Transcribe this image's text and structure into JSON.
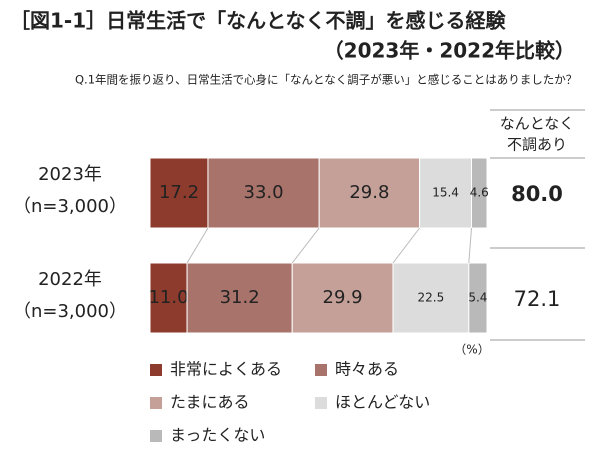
{
  "chart_data": {
    "type": "stacked_bar_h",
    "title": "［図1-1］日常生活で「なんとなく不調」を感じる経験",
    "title_line2": "（2023年・2022年比較）",
    "subtitle": "Q.1年間を振り返り、日常生活で心身に「なんとなく調子が悪い」と感じることはありましたか？",
    "categories": [
      "2023年",
      "2022年"
    ],
    "sample_sizes": [
      "（n=3,000）",
      "（n=3,000）"
    ],
    "xlim": [
      0,
      100
    ],
    "unit_label": "（%）",
    "series": [
      {
        "name": "非常によくある",
        "color": "#8c3b2d",
        "values": [
          17.2,
          11.0
        ],
        "value_labels": [
          "17.2",
          "11.0"
        ]
      },
      {
        "name": "時々ある",
        "color": "#a8736a",
        "values": [
          33.0,
          31.2
        ],
        "value_labels": [
          "33.0",
          "31.2"
        ]
      },
      {
        "name": "たまにある",
        "color": "#c4a099",
        "values": [
          29.8,
          29.9
        ],
        "value_labels": [
          "29.8",
          "29.9"
        ]
      },
      {
        "name": "ほとんどない",
        "color": "#dcdcdc",
        "values": [
          15.4,
          22.5
        ],
        "value_labels": [
          "15.4",
          "22.5"
        ]
      },
      {
        "name": "まったくない",
        "color": "#b9b9b9",
        "values": [
          4.6,
          5.4
        ],
        "value_labels": [
          "4.6",
          "5.4"
        ]
      }
    ],
    "summary": {
      "label_lines": [
        "なんとなく",
        "不調あり"
      ],
      "values": [
        80.0,
        72.1
      ],
      "value_labels": [
        "80.0",
        "72.1"
      ]
    }
  }
}
